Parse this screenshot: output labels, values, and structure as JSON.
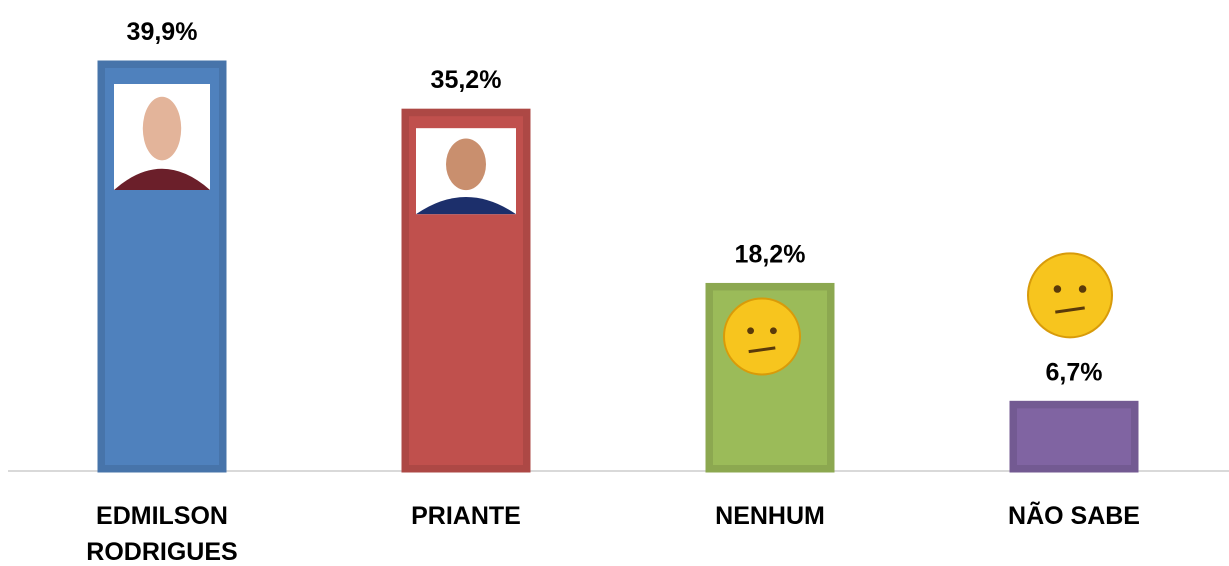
{
  "chart_data": {
    "type": "bar",
    "categories": [
      "EDMILSON RODRIGUES",
      "PRIANTE",
      "NENHUM",
      "NÃO SABE"
    ],
    "values": [
      39.9,
      35.2,
      18.2,
      6.7
    ],
    "value_labels": [
      "39,9%",
      "35,2%",
      "18,2%",
      "6,7%"
    ],
    "colors": [
      "#4f81bd",
      "#c0504d",
      "#9bbb59",
      "#8064a2"
    ]
  }
}
